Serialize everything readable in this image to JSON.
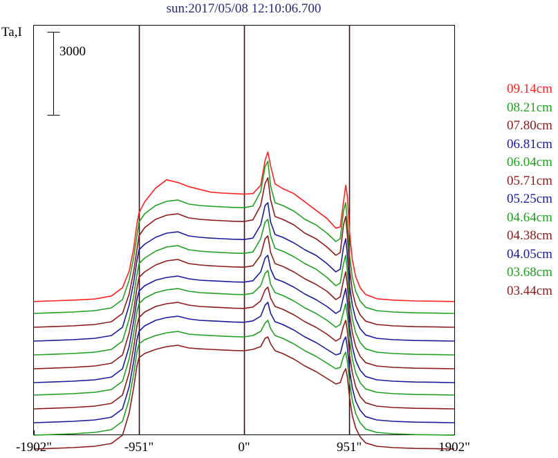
{
  "chart_data": {
    "type": "line",
    "title": "sun:2017/05/08 12:10:06.700",
    "ylabel": "Ta,I",
    "xlabel": "",
    "scale_bar_label": "3000",
    "scale_bar_value": 3000,
    "x_ticks": [
      {
        "value": -1902,
        "label": "-1902\""
      },
      {
        "value": -951,
        "label": "-951\""
      },
      {
        "value": 0,
        "label": "0\""
      },
      {
        "value": 951,
        "label": "951\""
      },
      {
        "value": 1902,
        "label": "1902\""
      }
    ],
    "xlim": [
      -1902,
      1902
    ],
    "reference_lines_x": [
      -951,
      0,
      951
    ],
    "grid": false,
    "legend_placement": "right",
    "profile_x": [
      -1902,
      -1750,
      -1550,
      -1350,
      -1200,
      -1100,
      -1040,
      -1000,
      -970,
      -951,
      -900,
      -800,
      -700,
      -600,
      -500,
      -400,
      -300,
      -200,
      -100,
      0,
      80,
      150,
      190,
      215,
      240,
      280,
      350,
      450,
      550,
      650,
      750,
      830,
      870,
      900,
      920,
      935,
      955,
      980,
      1010,
      1050,
      1100,
      1200,
      1350,
      1550,
      1750,
      1902
    ],
    "series": [
      {
        "name": "09.14cm",
        "color": "#ff2020",
        "offset": 4480,
        "values": [
          0,
          20,
          50,
          90,
          200,
          500,
          1100,
          1900,
          2800,
          3200,
          3600,
          4100,
          4400,
          4300,
          4150,
          4050,
          3950,
          3920,
          3900,
          3880,
          3900,
          4200,
          5100,
          5400,
          4900,
          4250,
          4080,
          3900,
          3600,
          3300,
          3000,
          2650,
          2700,
          3600,
          4200,
          3800,
          2500,
          1500,
          900,
          500,
          250,
          100,
          50,
          20,
          10,
          0
        ]
      },
      {
        "name": "08.21cm",
        "color": "#20a020",
        "offset": 4050,
        "values": [
          0,
          20,
          50,
          100,
          200,
          500,
          1200,
          2000,
          2800,
          3300,
          3600,
          3900,
          4050,
          4100,
          3950,
          3900,
          3870,
          3850,
          3830,
          3820,
          3880,
          4400,
          5300,
          5500,
          4600,
          4000,
          3900,
          3700,
          3400,
          3200,
          2900,
          2600,
          2700,
          3700,
          4000,
          3300,
          2100,
          1300,
          800,
          450,
          220,
          100,
          50,
          20,
          10,
          0
        ]
      },
      {
        "name": "07.80cm",
        "color": "#8b1a1a",
        "offset": 3550,
        "values": [
          0,
          20,
          50,
          100,
          200,
          500,
          1200,
          2000,
          2800,
          3300,
          3600,
          3900,
          4050,
          4100,
          3950,
          3900,
          3870,
          3850,
          3830,
          3820,
          3880,
          4400,
          5200,
          5400,
          4600,
          4000,
          3900,
          3700,
          3400,
          3200,
          2900,
          2600,
          2700,
          3700,
          4000,
          3300,
          2100,
          1300,
          800,
          450,
          220,
          100,
          50,
          20,
          10,
          0
        ]
      },
      {
        "name": "06.81cm",
        "color": "#1a1a9a",
        "offset": 3050,
        "values": [
          0,
          20,
          50,
          100,
          200,
          500,
          1300,
          2100,
          2900,
          3300,
          3500,
          3750,
          3900,
          3950,
          3800,
          3750,
          3720,
          3700,
          3680,
          3670,
          3720,
          4200,
          4900,
          5000,
          4300,
          3850,
          3750,
          3550,
          3300,
          3100,
          2800,
          2500,
          2600,
          3400,
          3700,
          3100,
          2000,
          1300,
          800,
          450,
          220,
          100,
          50,
          20,
          10,
          0
        ]
      },
      {
        "name": "06.04cm",
        "color": "#20a020",
        "offset": 2550,
        "values": [
          0,
          20,
          50,
          100,
          200,
          500,
          1300,
          2100,
          2900,
          3300,
          3500,
          3750,
          3900,
          3950,
          3800,
          3750,
          3720,
          3700,
          3680,
          3670,
          3720,
          4200,
          4800,
          4900,
          4300,
          3850,
          3750,
          3550,
          3300,
          3100,
          2800,
          2500,
          2600,
          3300,
          3600,
          3000,
          2000,
          1300,
          800,
          450,
          220,
          100,
          50,
          20,
          10,
          0
        ]
      },
      {
        "name": "05.71cm",
        "color": "#8b1a1a",
        "offset": 2050,
        "values": [
          0,
          20,
          50,
          100,
          200,
          500,
          1300,
          2100,
          2900,
          3300,
          3500,
          3750,
          3900,
          3950,
          3800,
          3750,
          3720,
          3700,
          3680,
          3670,
          3720,
          4100,
          4700,
          4800,
          4200,
          3800,
          3700,
          3500,
          3250,
          3050,
          2800,
          2500,
          2600,
          3200,
          3500,
          3000,
          2000,
          1300,
          800,
          450,
          220,
          100,
          50,
          20,
          10,
          0
        ]
      },
      {
        "name": "05.25cm",
        "color": "#1a1a9a",
        "offset": 1550,
        "values": [
          0,
          20,
          50,
          100,
          200,
          500,
          1300,
          2200,
          3000,
          3300,
          3500,
          3700,
          3800,
          3850,
          3750,
          3700,
          3680,
          3660,
          3640,
          3630,
          3680,
          4000,
          4500,
          4600,
          4100,
          3750,
          3650,
          3450,
          3200,
          3000,
          2750,
          2500,
          2600,
          3100,
          3400,
          2900,
          2000,
          1300,
          800,
          450,
          220,
          100,
          50,
          20,
          10,
          0
        ]
      },
      {
        "name": "04.64cm",
        "color": "#20a020",
        "offset": 1100,
        "values": [
          0,
          20,
          50,
          100,
          200,
          500,
          1300,
          2200,
          3000,
          3300,
          3500,
          3700,
          3800,
          3850,
          3750,
          3700,
          3680,
          3660,
          3640,
          3630,
          3680,
          3950,
          4400,
          4500,
          4000,
          3700,
          3600,
          3400,
          3150,
          2950,
          2700,
          2450,
          2550,
          3000,
          3300,
          2850,
          2000,
          1300,
          800,
          450,
          220,
          100,
          50,
          20,
          10,
          0
        ]
      },
      {
        "name": "04.38cm",
        "color": "#8b1a1a",
        "offset": 600,
        "values": [
          0,
          20,
          50,
          100,
          200,
          500,
          1300,
          2200,
          3000,
          3300,
          3500,
          3700,
          3800,
          3850,
          3750,
          3700,
          3680,
          3660,
          3640,
          3630,
          3680,
          3900,
          4300,
          4400,
          4000,
          3700,
          3600,
          3400,
          3150,
          2950,
          2700,
          2450,
          2550,
          3000,
          3200,
          2800,
          1950,
          1300,
          800,
          450,
          220,
          100,
          50,
          20,
          10,
          0
        ]
      },
      {
        "name": "04.05cm",
        "color": "#1a1a9a",
        "offset": 100,
        "values": [
          0,
          20,
          50,
          100,
          200,
          500,
          1300,
          2200,
          3000,
          3300,
          3500,
          3700,
          3800,
          3850,
          3750,
          3700,
          3680,
          3660,
          3640,
          3630,
          3680,
          3850,
          4250,
          4350,
          3950,
          3650,
          3550,
          3350,
          3100,
          2900,
          2650,
          2450,
          2500,
          2950,
          3100,
          2700,
          1900,
          1250,
          780,
          450,
          220,
          100,
          50,
          20,
          10,
          0
        ]
      },
      {
        "name": "03.68cm",
        "color": "#20a020",
        "offset": -350,
        "values": [
          0,
          20,
          50,
          100,
          200,
          500,
          1300,
          2200,
          3000,
          3300,
          3450,
          3600,
          3700,
          3750,
          3650,
          3620,
          3600,
          3580,
          3560,
          3550,
          3600,
          3750,
          4050,
          4150,
          3850,
          3600,
          3500,
          3300,
          3050,
          2850,
          2600,
          2400,
          2450,
          2850,
          3000,
          2650,
          1900,
          1250,
          780,
          450,
          220,
          100,
          50,
          20,
          10,
          0
        ]
      },
      {
        "name": "03.44cm",
        "color": "#8b1a1a",
        "offset": -850,
        "values": [
          0,
          20,
          50,
          100,
          200,
          500,
          1300,
          2200,
          3000,
          3300,
          3450,
          3600,
          3700,
          3750,
          3650,
          3620,
          3600,
          3580,
          3560,
          3550,
          3600,
          3700,
          4000,
          4050,
          3800,
          3550,
          3450,
          3250,
          3000,
          2800,
          2550,
          2350,
          2400,
          2750,
          2900,
          2600,
          1850,
          1200,
          760,
          440,
          220,
          100,
          50,
          20,
          10,
          0
        ]
      }
    ]
  }
}
